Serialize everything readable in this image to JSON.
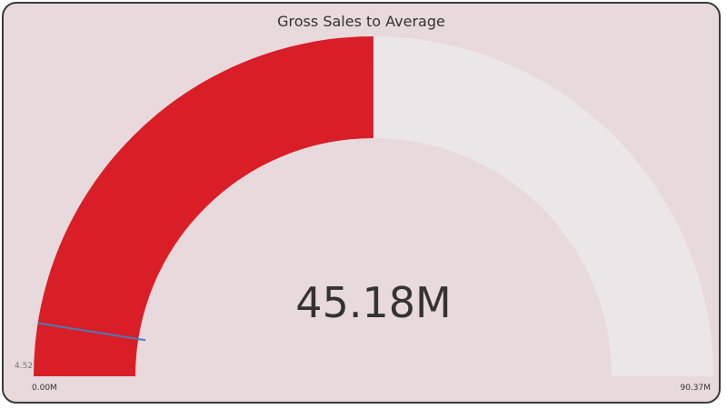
{
  "chart_data": {
    "type": "gauge",
    "title": "Gross Sales to Average",
    "value": 45.18,
    "value_label": "45.18M",
    "min": 0,
    "max": 90.37,
    "min_label": "0.00M",
    "max_label": "90.37M",
    "target": 4.52,
    "target_label": "4.52",
    "colors": {
      "fill": "#d91e28",
      "track": "#ebe7e8",
      "background": "#e7d9dc",
      "target_marker": "#4a7bb7"
    }
  }
}
